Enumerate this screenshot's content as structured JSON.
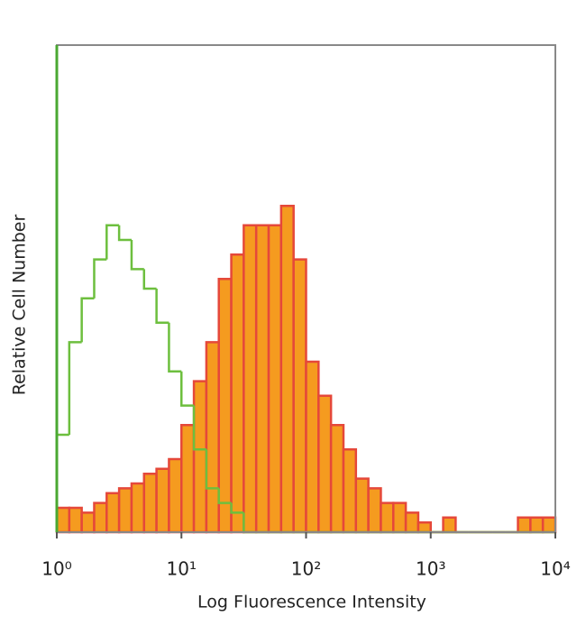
{
  "chart_data": {
    "type": "histogram",
    "x_label": "Log Fluorescence Intensity",
    "y_label": "Relative Cell Number",
    "x_log": true,
    "xlim": [
      1,
      10000
    ],
    "xticks": [
      {
        "value": 1,
        "label": "10⁰"
      },
      {
        "value": 10,
        "label": "10¹"
      },
      {
        "value": 100,
        "label": "10²"
      },
      {
        "value": 1000,
        "label": "10³"
      },
      {
        "value": 10000,
        "label": "10⁴"
      }
    ],
    "ylim": [
      0,
      100
    ],
    "bins": [
      1,
      1.259,
      1.585,
      1.995,
      2.512,
      3.162,
      3.981,
      5.012,
      6.31,
      7.943,
      10,
      12.59,
      15.85,
      19.95,
      25.12,
      31.62,
      39.81,
      50.12,
      63.1,
      79.43,
      100,
      125.9,
      158.5,
      199.5,
      251.2,
      316.2,
      398.1,
      501.2,
      631,
      794.3,
      1000,
      1259,
      1585,
      1995,
      2512,
      3162,
      3981,
      5012,
      6310,
      7943,
      10000
    ],
    "series": [
      {
        "color": "#e5483a",
        "fill": "#f59b1f",
        "values": [
          5,
          5,
          4,
          6,
          8,
          9,
          10,
          12,
          13,
          15,
          22,
          31,
          39,
          52,
          57,
          63,
          63,
          63,
          67,
          56,
          35,
          28,
          22,
          17,
          11,
          9,
          6,
          6,
          4,
          2,
          0,
          3,
          0,
          0,
          0,
          0,
          0,
          3,
          3,
          3
        ]
      },
      {
        "color": "#6dbf3e",
        "values": [
          20,
          39,
          48,
          56,
          63,
          60,
          54,
          50,
          43,
          33,
          26,
          17,
          9,
          6,
          4,
          0,
          0,
          0,
          0,
          0,
          0,
          0,
          0,
          0,
          0,
          0,
          0,
          0,
          0,
          0,
          0,
          0,
          0,
          0,
          0,
          0,
          0,
          0,
          0,
          0
        ]
      }
    ]
  }
}
